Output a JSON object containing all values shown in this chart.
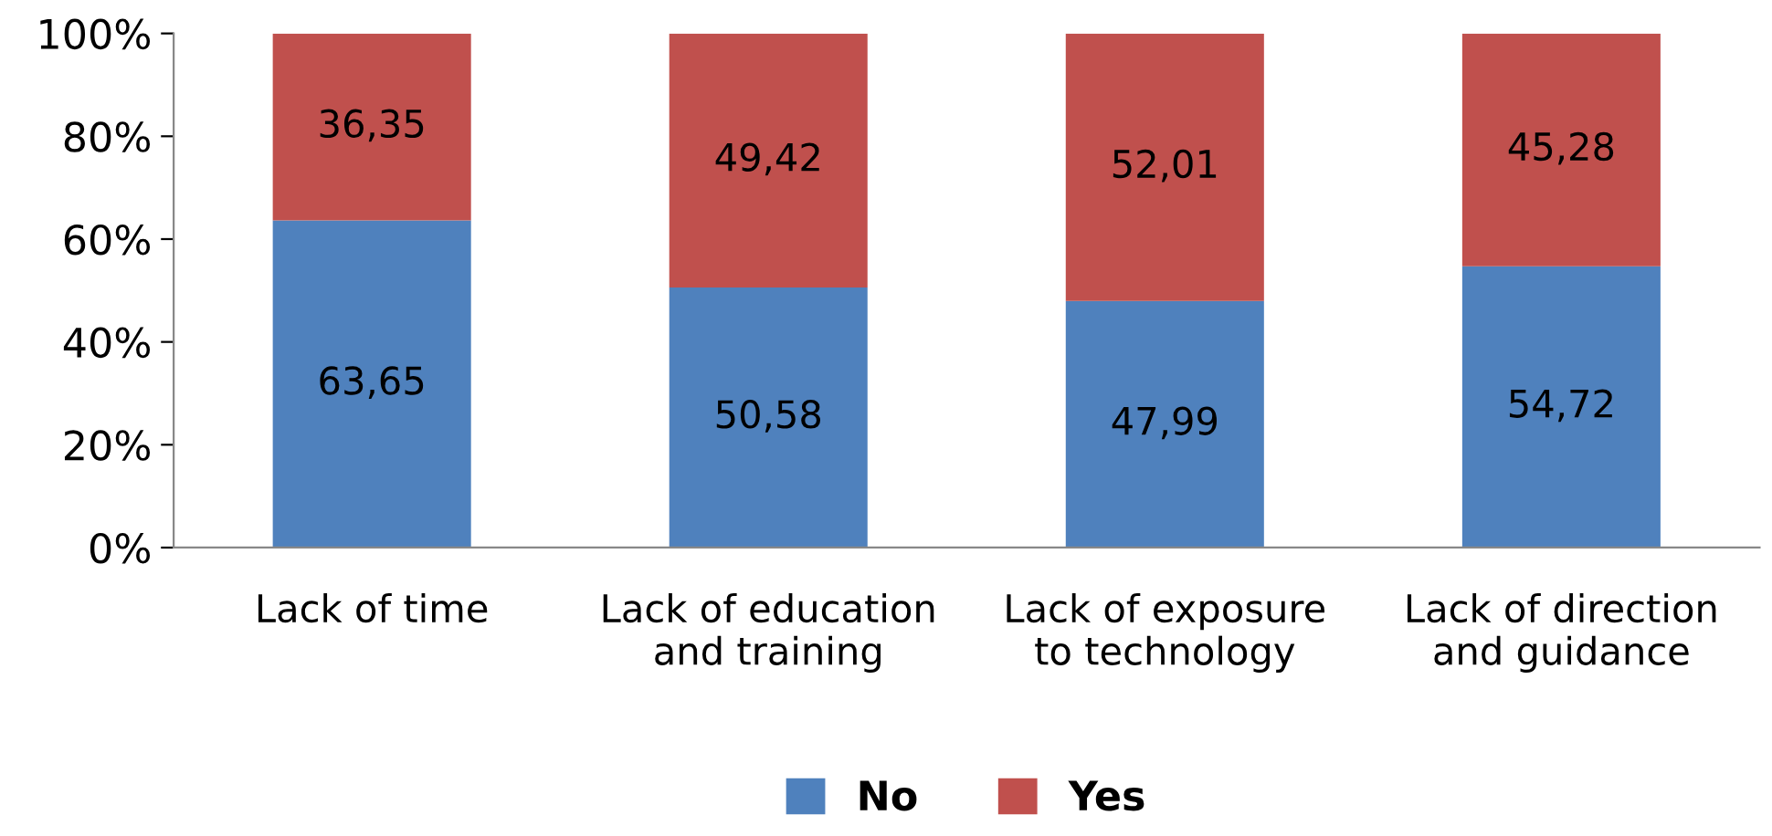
{
  "chart_data": {
    "type": "bar",
    "stacked": true,
    "categories": [
      "Lack of time",
      "Lack of education\nand training",
      "Lack of exposure\nto technology",
      "Lack of direction\nand guidance"
    ],
    "series": [
      {
        "name": "No",
        "color": "#4f81bd",
        "values": [
          63.65,
          50.58,
          47.99,
          54.72
        ],
        "value_labels": [
          "63,65",
          "50,58",
          "47,99",
          "54,72"
        ]
      },
      {
        "name": "Yes",
        "color": "#c0504d",
        "values": [
          36.35,
          49.42,
          52.01,
          45.28
        ],
        "value_labels": [
          "36,35",
          "49,42",
          "52,01",
          "45,28"
        ]
      }
    ],
    "ylim": [
      0,
      100
    ],
    "yticks": [
      {
        "value": 0,
        "label": "0%"
      },
      {
        "value": 20,
        "label": "20%"
      },
      {
        "value": 40,
        "label": "40%"
      },
      {
        "value": 60,
        "label": "60%"
      },
      {
        "value": 80,
        "label": "80%"
      },
      {
        "value": 100,
        "label": "100%"
      }
    ],
    "grid": false,
    "legend": "bottom"
  }
}
